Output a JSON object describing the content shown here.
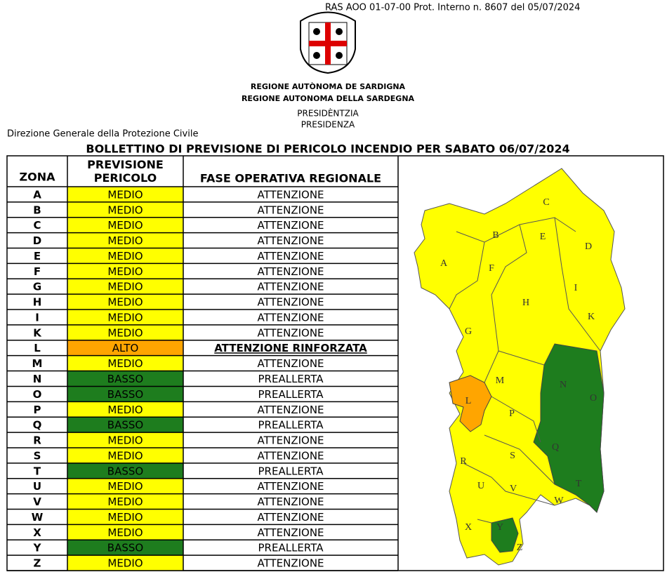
{
  "header": {
    "protocol": "RAS AOO 01-07-00 Prot. Interno n. 8607 del 05/07/2024",
    "region_sardinian": "REGIONE AUTÒNOMA DE SARDIGNA",
    "region_italian": "REGIONE AUTONOMA DELLA SARDEGNA",
    "office_sardinian": "PRESIDÈNTZIA",
    "office_italian": "PRESIDENZA",
    "department": "Direzione Generale della Protezione Civile"
  },
  "title": "BOLLETTINO DI PREVISIONE DI PERICOLO INCENDIO PER SABATO 06/07/2024",
  "table": {
    "columns": [
      "ZONA",
      "PREVISIONE PERICOLO",
      "FASE OPERATIVA REGIONALE"
    ],
    "rows": [
      {
        "zona": "A",
        "previsione": "MEDIO",
        "fase": "ATTENZIONE",
        "color": "#ffff00"
      },
      {
        "zona": "B",
        "previsione": "MEDIO",
        "fase": "ATTENZIONE",
        "color": "#ffff00"
      },
      {
        "zona": "C",
        "previsione": "MEDIO",
        "fase": "ATTENZIONE",
        "color": "#ffff00"
      },
      {
        "zona": "D",
        "previsione": "MEDIO",
        "fase": "ATTENZIONE",
        "color": "#ffff00"
      },
      {
        "zona": "E",
        "previsione": "MEDIO",
        "fase": "ATTENZIONE",
        "color": "#ffff00"
      },
      {
        "zona": "F",
        "previsione": "MEDIO",
        "fase": "ATTENZIONE",
        "color": "#ffff00"
      },
      {
        "zona": "G",
        "previsione": "MEDIO",
        "fase": "ATTENZIONE",
        "color": "#ffff00"
      },
      {
        "zona": "H",
        "previsione": "MEDIO",
        "fase": "ATTENZIONE",
        "color": "#ffff00"
      },
      {
        "zona": "I",
        "previsione": "MEDIO",
        "fase": "ATTENZIONE",
        "color": "#ffff00"
      },
      {
        "zona": "K",
        "previsione": "MEDIO",
        "fase": "ATTENZIONE",
        "color": "#ffff00"
      },
      {
        "zona": "L",
        "previsione": "ALTO",
        "fase": "ATTENZIONE RINFORZATA",
        "color": "#ffa500",
        "emphasis": true
      },
      {
        "zona": "M",
        "previsione": "MEDIO",
        "fase": "ATTENZIONE",
        "color": "#ffff00"
      },
      {
        "zona": "N",
        "previsione": "BASSO",
        "fase": "PREALLERTA",
        "color": "#1e7d1e"
      },
      {
        "zona": "O",
        "previsione": "BASSO",
        "fase": "PREALLERTA",
        "color": "#1e7d1e"
      },
      {
        "zona": "P",
        "previsione": "MEDIO",
        "fase": "ATTENZIONE",
        "color": "#ffff00"
      },
      {
        "zona": "Q",
        "previsione": "BASSO",
        "fase": "PREALLERTA",
        "color": "#1e7d1e"
      },
      {
        "zona": "R",
        "previsione": "MEDIO",
        "fase": "ATTENZIONE",
        "color": "#ffff00"
      },
      {
        "zona": "S",
        "previsione": "MEDIO",
        "fase": "ATTENZIONE",
        "color": "#ffff00"
      },
      {
        "zona": "T",
        "previsione": "BASSO",
        "fase": "PREALLERTA",
        "color": "#1e7d1e"
      },
      {
        "zona": "U",
        "previsione": "MEDIO",
        "fase": "ATTENZIONE",
        "color": "#ffff00"
      },
      {
        "zona": "V",
        "previsione": "MEDIO",
        "fase": "ATTENZIONE",
        "color": "#ffff00"
      },
      {
        "zona": "W",
        "previsione": "MEDIO",
        "fase": "ATTENZIONE",
        "color": "#ffff00"
      },
      {
        "zona": "X",
        "previsione": "MEDIO",
        "fase": "ATTENZIONE",
        "color": "#ffff00"
      },
      {
        "zona": "Y",
        "previsione": "BASSO",
        "fase": "PREALLERTA",
        "color": "#1e7d1e"
      },
      {
        "zona": "Z",
        "previsione": "MEDIO",
        "fase": "ATTENZIONE",
        "color": "#ffff00"
      }
    ]
  },
  "map": {
    "labels": [
      "C",
      "B",
      "E",
      "D",
      "A",
      "F",
      "I",
      "H",
      "K",
      "G",
      "N",
      "M",
      "O",
      "L",
      "P",
      "Q",
      "S",
      "R",
      "T",
      "U",
      "V",
      "W",
      "Y",
      "X",
      "Z"
    ]
  }
}
